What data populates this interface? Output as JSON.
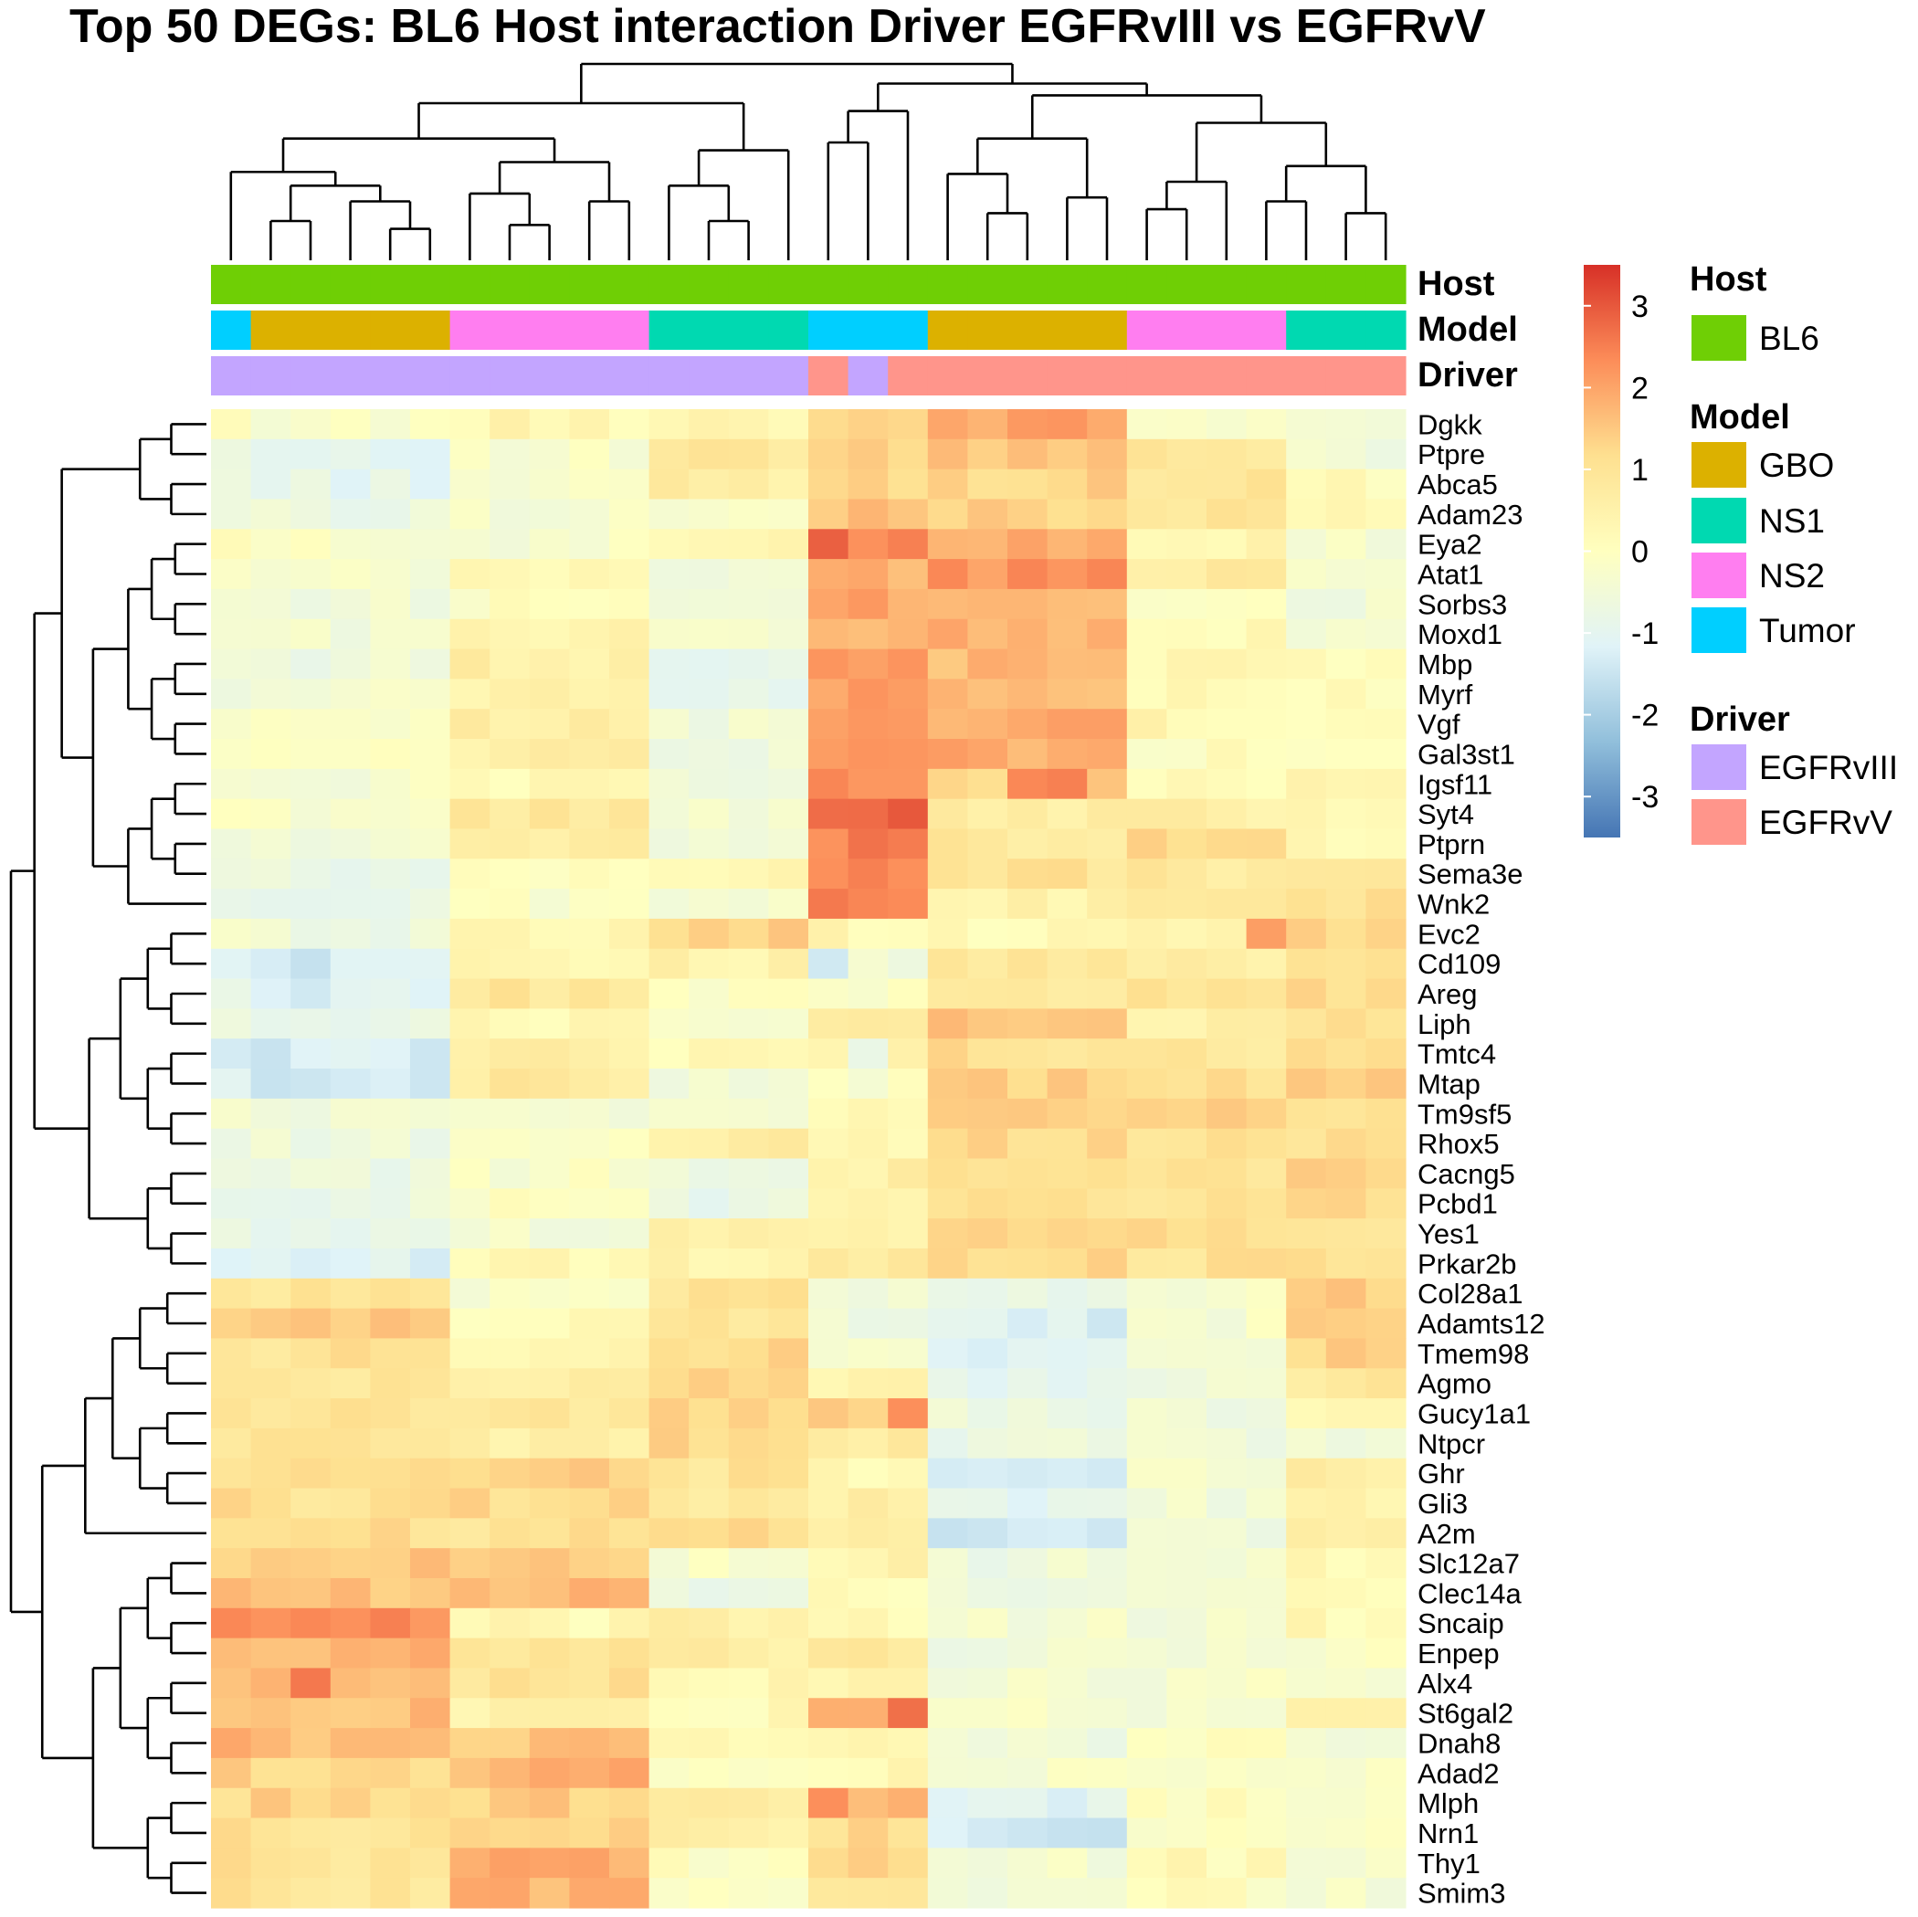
{
  "chart_data": {
    "type": "heatmap",
    "title": "Top 50 DEGs: BL6 Host interaction Driver EGFRvIII vs EGFRvV",
    "rows": [
      "Dgkk",
      "Ptpre",
      "Abca5",
      "Adam23",
      "Eya2",
      "Atat1",
      "Sorbs3",
      "Moxd1",
      "Mbp",
      "Myrf",
      "Vgf",
      "Gal3st1",
      "Igsf11",
      "Syt4",
      "Ptprn",
      "Sema3e",
      "Wnk2",
      "Evc2",
      "Cd109",
      "Areg",
      "Liph",
      "Tmtc4",
      "Mtap",
      "Tm9sf5",
      "Rhox5",
      "Cacng5",
      "Pcbd1",
      "Yes1",
      "Prkar2b",
      "Col28a1",
      "Adamts12",
      "Tmem98",
      "Agmo",
      "Gucy1a1",
      "Ntpcr",
      "Ghr",
      "Gli3",
      "A2m",
      "Slc12a7",
      "Clec14a",
      "Sncaip",
      "Enpep",
      "Alx4",
      "St6gal2",
      "Dnah8",
      "Adad2",
      "Mlph",
      "Nrn1",
      "Thy1",
      "Smim3"
    ],
    "n_columns": 30,
    "column_annotations": {
      "Host": [
        "BL6",
        "BL6",
        "BL6",
        "BL6",
        "BL6",
        "BL6",
        "BL6",
        "BL6",
        "BL6",
        "BL6",
        "BL6",
        "BL6",
        "BL6",
        "BL6",
        "BL6",
        "BL6",
        "BL6",
        "BL6",
        "BL6",
        "BL6",
        "BL6",
        "BL6",
        "BL6",
        "BL6",
        "BL6",
        "BL6",
        "BL6",
        "BL6",
        "BL6",
        "BL6"
      ],
      "Model": [
        "Tumor",
        "GBO",
        "GBO",
        "GBO",
        "GBO",
        "GBO",
        "NS2",
        "NS2",
        "NS2",
        "NS2",
        "NS2",
        "NS1",
        "NS1",
        "NS1",
        "NS1",
        "Tumor",
        "Tumor",
        "Tumor",
        "GBO",
        "GBO",
        "GBO",
        "GBO",
        "GBO",
        "NS2",
        "NS2",
        "NS2",
        "NS2",
        "NS1",
        "NS1",
        "NS1"
      ],
      "Driver": [
        "EGFRvIII",
        "EGFRvIII",
        "EGFRvIII",
        "EGFRvIII",
        "EGFRvIII",
        "EGFRvIII",
        "EGFRvIII",
        "EGFRvIII",
        "EGFRvIII",
        "EGFRvIII",
        "EGFRvIII",
        "EGFRvIII",
        "EGFRvIII",
        "EGFRvIII",
        "EGFRvIII",
        "EGFRvV",
        "EGFRvIII",
        "EGFRvV",
        "EGFRvV",
        "EGFRvV",
        "EGFRvV",
        "EGFRvV",
        "EGFRvV",
        "EGFRvV",
        "EGFRvV",
        "EGFRvV",
        "EGFRvV",
        "EGFRvV",
        "EGFRvV",
        "EGFRvV"
      ]
    },
    "column_groups": [
      {
        "cols": [
          0,
          15
        ],
        "profile": [
          0.0,
          -0.7,
          -0.6,
          -0.5,
          0.0,
          -0.3,
          -0.4,
          -0.4,
          -0.5,
          -0.4,
          -0.3,
          -0.2,
          -0.3,
          -0.2,
          -0.5,
          -0.6,
          -0.7,
          -0.5,
          -1.2,
          -1.0,
          -0.8,
          -1.1,
          -1.1,
          -0.5,
          -0.6,
          -0.8,
          -0.7,
          -0.9,
          -1.0,
          1.0,
          1.3,
          1.0,
          1.0,
          1.0,
          1.0,
          0.9,
          1.1,
          1.2,
          1.4,
          1.6,
          2.2,
          1.6,
          1.8,
          1.5,
          1.8,
          1.4,
          1.2,
          1.3,
          1.0,
          1.0
        ]
      },
      {
        "cols": [
          1,
          5
        ],
        "profile": [
          -0.2,
          -0.9,
          -0.9,
          -0.7,
          -0.2,
          -0.4,
          -0.5,
          -0.4,
          -0.6,
          -0.4,
          -0.3,
          -0.2,
          -0.3,
          -0.2,
          -0.5,
          -0.8,
          -0.9,
          -0.6,
          -1.3,
          -1.2,
          -0.9,
          -1.3,
          -1.3,
          -0.5,
          -0.6,
          -0.8,
          -0.7,
          -1.0,
          -1.2,
          1.0,
          1.4,
          1.0,
          1.0,
          1.0,
          1.0,
          1.0,
          1.0,
          1.1,
          1.5,
          1.6,
          2.3,
          1.8,
          1.8,
          1.6,
          1.5,
          1.2,
          1.3,
          0.9,
          0.9,
          0.9
        ]
      },
      {
        "cols": [
          6,
          10
        ],
        "profile": [
          0.3,
          -0.3,
          -0.3,
          -0.3,
          -0.3,
          0.2,
          0.0,
          0.3,
          0.6,
          0.5,
          0.6,
          0.6,
          0.2,
          0.8,
          0.6,
          0.0,
          -0.2,
          0.3,
          0.2,
          0.9,
          0.3,
          0.7,
          0.8,
          -0.4,
          -0.3,
          -0.2,
          -0.1,
          -0.4,
          0.2,
          -0.2,
          0.1,
          0.2,
          0.6,
          0.8,
          0.6,
          1.3,
          1.2,
          1.0,
          1.4,
          1.8,
          0.2,
          0.9,
          1.0,
          0.4,
          1.5,
          1.8,
          1.4,
          1.3,
          1.9,
          1.8
        ]
      },
      {
        "cols": [
          11,
          14
        ],
        "profile": [
          0.4,
          0.8,
          0.6,
          -0.2,
          0.3,
          -0.5,
          -0.3,
          -0.2,
          -0.8,
          -0.8,
          -0.5,
          -0.5,
          -0.5,
          -0.3,
          -0.7,
          0.3,
          -0.3,
          1.3,
          0.5,
          0.0,
          -0.4,
          0.2,
          -0.4,
          -0.4,
          0.7,
          -0.7,
          -0.8,
          0.5,
          0.5,
          1.0,
          1.0,
          1.3,
          1.3,
          1.2,
          1.2,
          1.0,
          0.9,
          1.3,
          -0.3,
          -0.6,
          0.6,
          0.6,
          0.2,
          0.2,
          0.3,
          -0.2,
          0.6,
          0.6,
          0.0,
          0.0
        ]
      },
      {
        "cols": [
          15,
          17
        ],
        "profile": [
          1.3,
          1.3,
          1.2,
          1.5,
          2.0,
          1.8,
          2.0,
          1.8,
          2.0,
          2.0,
          2.2,
          2.2,
          2.2,
          2.5,
          2.4,
          2.5,
          2.4,
          0.3,
          -0.5,
          -0.2,
          0.6,
          0.5,
          -0.2,
          0.3,
          0.3,
          0.6,
          0.5,
          0.5,
          0.7,
          -0.4,
          -0.6,
          -0.5,
          0.3,
          1.5,
          0.8,
          0.3,
          0.5,
          0.5,
          0.4,
          0.2,
          0.3,
          0.8,
          0.3,
          2.0,
          0.5,
          0.2,
          1.8,
          1.2,
          1.3,
          0.9
        ]
      },
      {
        "cols": [
          18,
          22
        ],
        "profile": [
          2.0,
          1.5,
          1.3,
          1.4,
          2.0,
          2.2,
          1.8,
          1.8,
          1.7,
          1.8,
          1.9,
          1.9,
          1.3,
          0.7,
          0.8,
          1.0,
          0.5,
          0.2,
          0.9,
          0.8,
          1.5,
          1.1,
          1.3,
          1.4,
          1.2,
          1.0,
          1.0,
          1.2,
          1.2,
          -0.9,
          -1.2,
          -1.0,
          -0.9,
          -0.7,
          -0.7,
          -1.1,
          -1.0,
          -1.4,
          -0.6,
          -0.7,
          -0.4,
          -0.5,
          -0.4,
          -0.3,
          -0.6,
          -0.3,
          -1.0,
          -1.3,
          -0.4,
          -0.4
        ]
      },
      {
        "cols": [
          23,
          26
        ],
        "profile": [
          -0.2,
          0.8,
          1.0,
          0.9,
          0.4,
          0.8,
          0.0,
          0.2,
          0.3,
          0.3,
          0.3,
          0.0,
          0.1,
          0.6,
          1.2,
          0.8,
          0.6,
          0.4,
          0.7,
          1.1,
          0.5,
          0.8,
          1.0,
          1.3,
          1.1,
          1.0,
          1.0,
          1.2,
          1.0,
          -0.2,
          -0.3,
          -0.4,
          -0.6,
          -0.5,
          -0.6,
          -0.4,
          -0.5,
          -0.6,
          -0.5,
          -0.4,
          -0.5,
          -0.3,
          -0.3,
          -0.3,
          0.0,
          -0.2,
          0.0,
          -0.2,
          0.2,
          0.0
        ]
      },
      {
        "cols": [
          27,
          29
        ],
        "profile": [
          -0.4,
          -0.5,
          0.1,
          0.2,
          -0.3,
          -0.3,
          -0.5,
          -0.4,
          0.2,
          0.0,
          0.0,
          -0.2,
          0.4,
          0.2,
          0.3,
          1.0,
          1.0,
          1.3,
          1.0,
          1.1,
          1.2,
          1.3,
          1.4,
          1.0,
          1.0,
          1.4,
          1.3,
          1.0,
          1.0,
          1.4,
          1.4,
          1.3,
          0.9,
          0.2,
          -0.4,
          0.6,
          0.5,
          0.8,
          0.3,
          0.3,
          0.2,
          -0.2,
          -0.2,
          0.3,
          -0.4,
          -0.3,
          -0.1,
          0.0,
          -0.2,
          -0.3
        ]
      }
    ],
    "highlights": [
      {
        "gene": "Eya2",
        "col": 15,
        "value": 2.9
      },
      {
        "gene": "Eya2",
        "col": 17,
        "value": 2.5
      },
      {
        "gene": "Syt4",
        "col": 17,
        "value": 3.0
      },
      {
        "gene": "Igsf11",
        "col": 20,
        "value": 2.4
      },
      {
        "gene": "Igsf11",
        "col": 21,
        "value": 2.5
      },
      {
        "gene": "Alx4",
        "col": 2,
        "value": 2.6
      },
      {
        "gene": "St6gal2",
        "col": 17,
        "value": 2.7
      },
      {
        "gene": "Evc2",
        "col": 26,
        "value": 2.1
      },
      {
        "gene": "Cd109",
        "col": 15,
        "value": -1.4
      },
      {
        "gene": "Tmtc4",
        "col": 16,
        "value": -0.8
      },
      {
        "gene": "Mlph",
        "col": 15,
        "value": 2.3
      },
      {
        "gene": "Gucy1a1",
        "col": 17,
        "value": 2.3
      }
    ],
    "color_scale": {
      "min": -3.5,
      "max": 3.5,
      "ticks": [
        3,
        2,
        1,
        0,
        -1,
        -2,
        -3
      ],
      "colors": [
        "#4575b4",
        "#91bfdb",
        "#e0f3f8",
        "#ffffbf",
        "#fee090",
        "#fc8d59",
        "#d73027"
      ]
    },
    "annotation_labels": [
      "Host",
      "Model",
      "Driver"
    ],
    "legend": {
      "Host": [
        {
          "label": "BL6",
          "color": "#6fcf05"
        }
      ],
      "Model": [
        {
          "label": "GBO",
          "color": "#dcb100"
        },
        {
          "label": "NS1",
          "color": "#00d9b1"
        },
        {
          "label": "NS2",
          "color": "#ff7ef0"
        },
        {
          "label": "Tumor",
          "color": "#00cfff"
        }
      ],
      "Driver": [
        {
          "label": "EGFRvIII",
          "color": "#c3a5ff"
        },
        {
          "label": "EGFRvV",
          "color": "#ff958b"
        }
      ]
    }
  }
}
